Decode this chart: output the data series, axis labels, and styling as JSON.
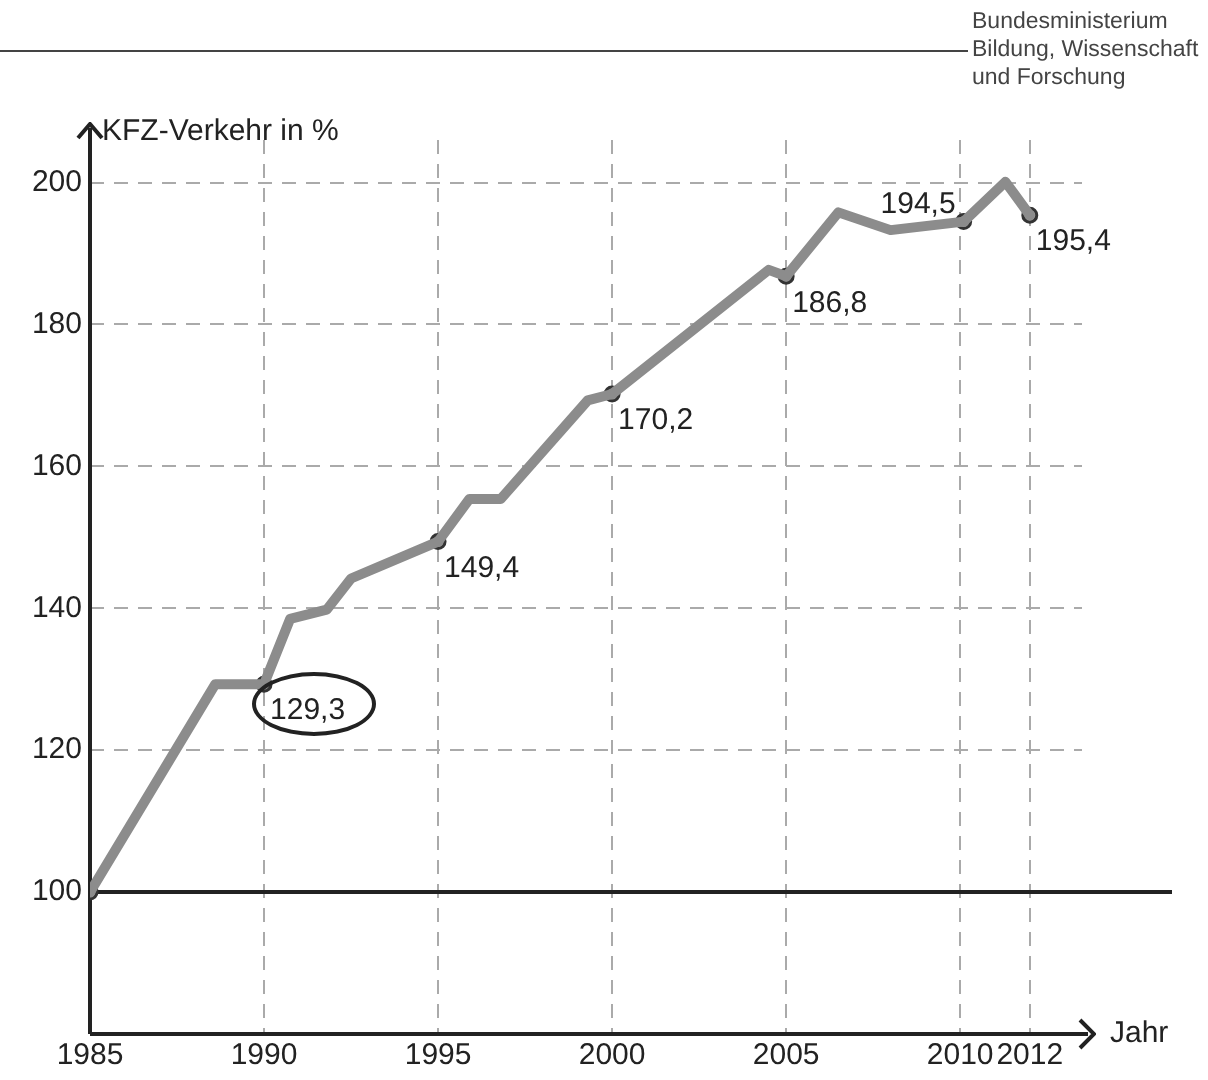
{
  "chart_data": {
    "type": "line",
    "ylabel": "KFZ-Verkehr in %",
    "xlabel": "Jahr",
    "annotations": [
      "Bundesministerium\nBildung, Wissenschaft\nund Forschung"
    ],
    "x": [
      1985,
      1988.6,
      1990,
      1990.75,
      1991.8,
      1992.5,
      1995,
      1995.9,
      1996.8,
      1999.3,
      2000,
      2004.5,
      2005,
      2006.5,
      2008,
      2010.1,
      2011.3,
      2012
    ],
    "series": [
      {
        "color": "#8c8c8c",
        "marker": "none",
        "values": [
          100,
          129.3,
          129.3,
          138.5,
          139.8,
          144.2,
          149.4,
          155.4,
          155.4,
          169.3,
          170.2,
          187.7,
          186.8,
          195.8,
          193.3,
          194.5,
          200.1,
          195.4
        ]
      },
      {
        "type": "scatter",
        "color": "#999999",
        "marker": "circle",
        "x": [
          1985,
          1990,
          1995,
          2000,
          2005,
          2010.1,
          2012
        ],
        "values": [
          100,
          129.3,
          149.4,
          170.2,
          186.8,
          194.5,
          195.4
        ],
        "value_labels": [
          null,
          "129,3",
          "149,4",
          "170,2",
          "186,8",
          "194,5",
          "195,4"
        ]
      }
    ],
    "xlim": [
      1985,
      2013.5
    ],
    "xticks": [
      1985,
      1990,
      1995,
      2000,
      2005,
      2010,
      2012
    ],
    "ylim": [
      80,
      206
    ],
    "yticks": [
      100,
      120,
      140,
      160,
      180,
      200
    ],
    "grid": true,
    "line_style": "solid",
    "legend": false,
    "ref_lines": [
      {
        "axis": "y",
        "value": 100,
        "color": "#222222",
        "line_style": "solid"
      }
    ]
  }
}
